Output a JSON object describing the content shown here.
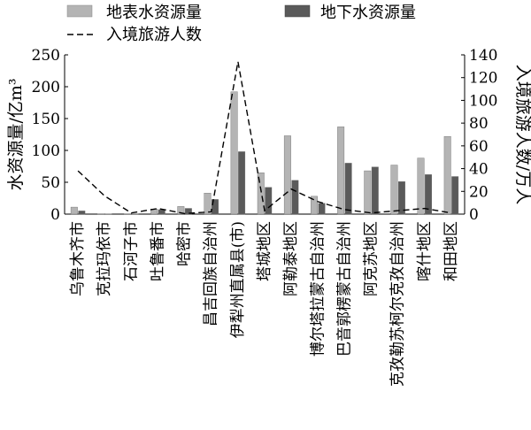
{
  "chart_data": {
    "type": "bar",
    "categories": [
      "乌鲁木齐市",
      "克拉玛依市",
      "石河子市",
      "吐鲁番市",
      "哈密市",
      "昌吉回族自治州",
      "伊犁州直属县(市)",
      "塔城地区",
      "阿勒泰地区",
      "博尔塔拉蒙古自治州",
      "巴音郭楞蒙古自治州",
      "阿克苏地区",
      "克孜勒苏柯尔克孜自治州",
      "喀什地区",
      "和田地区"
    ],
    "series": [
      {
        "name": "地表水资源量",
        "kind": "bar",
        "axis": "left",
        "color": "#b4b4b4",
        "values": [
          11,
          0.5,
          0.2,
          8,
          12,
          33,
          192,
          65,
          123,
          28,
          137,
          68,
          77,
          88,
          122
        ]
      },
      {
        "name": "地下水资源量",
        "kind": "bar",
        "axis": "left",
        "color": "#5a5a5a",
        "values": [
          5,
          0.3,
          0.5,
          7,
          9,
          23,
          98,
          42,
          53,
          17,
          80,
          74,
          51,
          62,
          59
        ]
      },
      {
        "name": "入境旅游人数",
        "kind": "line",
        "axis": "right",
        "color": "#000000",
        "values": [
          38,
          16,
          1,
          5,
          0.5,
          2,
          134,
          3,
          22,
          11,
          4,
          1,
          3,
          5,
          1
        ]
      }
    ],
    "ylabel": "水资源量/亿m³",
    "y2label": "入境旅游人数/万人",
    "ylim": [
      0,
      250
    ],
    "y2lim": [
      0,
      140
    ],
    "yticks": [
      0,
      50,
      100,
      150,
      200,
      250
    ],
    "y2ticks": [
      0,
      20,
      40,
      60,
      80,
      100,
      120,
      140
    ],
    "legend_position": "top",
    "grid": false
  }
}
